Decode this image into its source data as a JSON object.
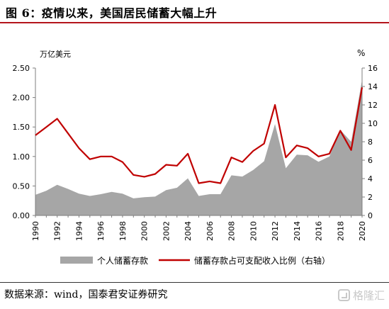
{
  "title": "图 6：疫情以来，美国居民储蓄大幅上升",
  "source": "数据来源：wind，国泰君安证券研究",
  "watermark": "格隆汇",
  "colors": {
    "area": "#a6a6a6",
    "line": "#c00000",
    "title_rule": "#b4151c"
  },
  "chart_data": {
    "type": "area",
    "x": [
      1990,
      1991,
      1992,
      1993,
      1994,
      1995,
      1996,
      1997,
      1998,
      1999,
      2000,
      2001,
      2002,
      2003,
      2004,
      2005,
      2006,
      2007,
      2008,
      2009,
      2010,
      2011,
      2012,
      2013,
      2014,
      2015,
      2016,
      2017,
      2018,
      2019,
      2020
    ],
    "xticks": [
      "1990",
      "1992",
      "1994",
      "1996",
      "1998",
      "2000",
      "2002",
      "2004",
      "2006",
      "2008",
      "2010",
      "2012",
      "2014",
      "2016",
      "2018",
      "2020"
    ],
    "y_left": {
      "unit": "万亿美元",
      "range": [
        0,
        2.5
      ],
      "ticks": [
        "0.00",
        "0.50",
        "1.00",
        "1.50",
        "2.00",
        "2.50"
      ]
    },
    "y_right": {
      "unit": "%",
      "range": [
        0,
        16
      ],
      "ticks": [
        "0",
        "2",
        "4",
        "6",
        "8",
        "10",
        "12",
        "14",
        "16"
      ]
    },
    "grid": false,
    "legend_position": "bottom",
    "series": [
      {
        "name": "个人储蓄存款",
        "type": "area",
        "axis": "left",
        "values": [
          0.35,
          0.42,
          0.52,
          0.45,
          0.37,
          0.33,
          0.36,
          0.4,
          0.37,
          0.29,
          0.31,
          0.32,
          0.43,
          0.47,
          0.63,
          0.33,
          0.36,
          0.36,
          0.68,
          0.66,
          0.77,
          0.92,
          1.55,
          0.8,
          1.03,
          1.02,
          0.91,
          1.0,
          1.45,
          1.25,
          2.3
        ]
      },
      {
        "name": "储蓄存款占可支配收入比例（右轴）",
        "type": "line",
        "axis": "right",
        "values": [
          8.7,
          9.6,
          10.5,
          8.9,
          7.3,
          6.1,
          6.4,
          6.4,
          5.8,
          4.4,
          4.2,
          4.5,
          5.5,
          5.4,
          6.7,
          3.5,
          3.7,
          3.5,
          6.3,
          5.8,
          7.0,
          7.8,
          12.0,
          6.3,
          7.6,
          7.3,
          6.4,
          6.7,
          9.2,
          7.1,
          13.9
        ]
      }
    ]
  }
}
